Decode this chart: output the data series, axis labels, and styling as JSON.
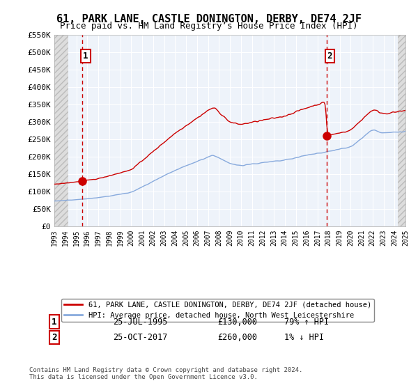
{
  "title": "61, PARK LANE, CASTLE DONINGTON, DERBY, DE74 2JF",
  "subtitle": "Price paid vs. HM Land Registry’s House Price Index (HPI)",
  "ylabel": "",
  "xlabel": "",
  "ylim": [
    0,
    550000
  ],
  "yticks": [
    0,
    50000,
    100000,
    150000,
    200000,
    250000,
    300000,
    350000,
    400000,
    450000,
    500000,
    550000
  ],
  "ytick_labels": [
    "£0",
    "£50K",
    "£100K",
    "£150K",
    "£200K",
    "£250K",
    "£300K",
    "£350K",
    "£400K",
    "£450K",
    "£500K",
    "£550K"
  ],
  "sale1_year": 1995.56,
  "sale1_price": 130000,
  "sale1_label": "25-JUL-1995",
  "sale1_pct": "79% ↑ HPI",
  "sale2_year": 2017.81,
  "sale2_price": 260000,
  "sale2_label": "25-OCT-2017",
  "sale2_pct": "1% ↓ HPI",
  "legend_line1": "61, PARK LANE, CASTLE DONINGTON, DERBY, DE74 2JF (detached house)",
  "legend_line2": "HPI: Average price, detached house, North West Leicestershire",
  "footer": "Contains HM Land Registry data © Crown copyright and database right 2024.\nThis data is licensed under the Open Government Licence v3.0.",
  "bg_color": "#eef3fa",
  "hatch_color": "#cccccc",
  "red_line_color": "#cc0000",
  "blue_line_color": "#88aadd",
  "sale_marker_color": "#cc0000",
  "dashed_line_color": "#cc0000",
  "box_color": "#cc0000",
  "grid_color": "#ffffff",
  "xmin": 1993,
  "xmax": 2025
}
